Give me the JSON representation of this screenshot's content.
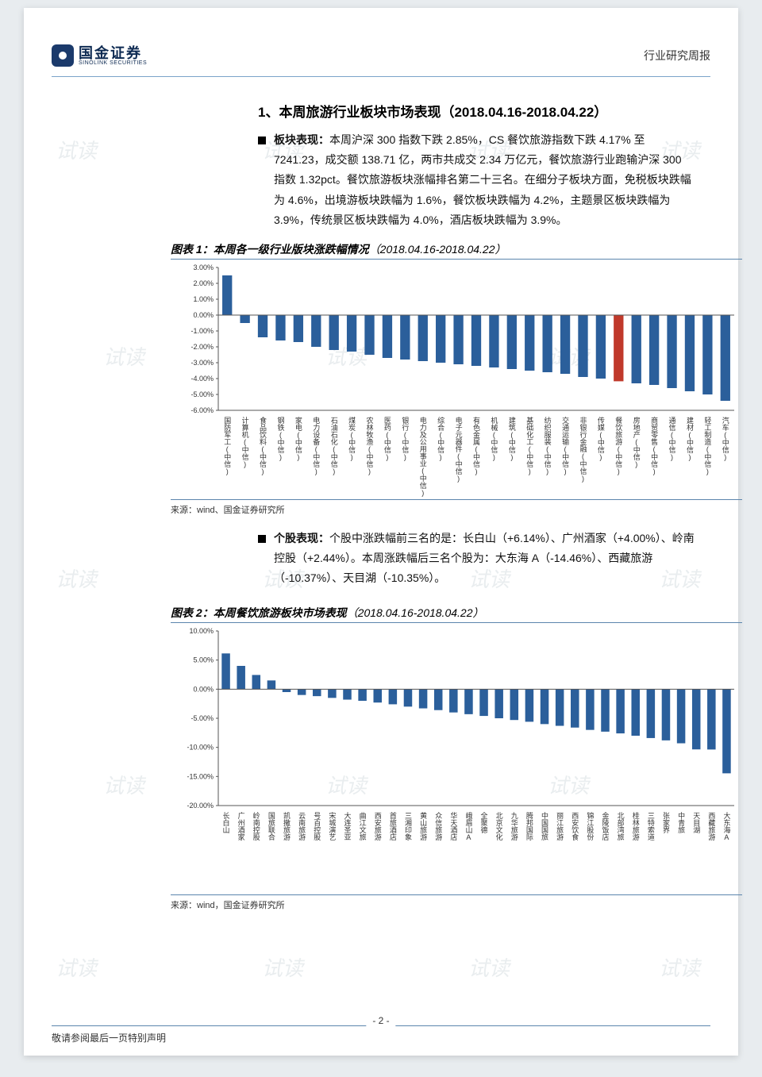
{
  "header": {
    "logo_cn": "国金证券",
    "logo_en": "SINOLINK SECURITIES",
    "doc_type": "行业研究周报"
  },
  "section1": {
    "title": "1、本周旅游行业板块市场表现（2018.04.16-2018.04.22）",
    "para_lead": "板块表现：",
    "para_body": "本周沪深 300 指数下跌 2.85%，CS 餐饮旅游指数下跌 4.17% 至 7241.23，成交额 138.71 亿，两市共成交 2.34 万亿元，餐饮旅游行业跑输沪深 300 指数 1.32pct。餐饮旅游板块涨幅排名第二十三名。在细分子板块方面，免税板块跌幅为 4.6%，出境游板块跌幅为 1.6%，餐饮板块跌幅为 4.2%，主题景区板块跌幅为 3.9%，传统景区板块跌幅为 4.0%，酒店板块跌幅为 3.9%。"
  },
  "fig1": {
    "title_prefix": "图表 1：本周各一级行业版块涨跌幅情况",
    "title_date": "（2018.04.16-2018.04.22）",
    "source": "来源：wind、国金证券研究所",
    "type": "bar",
    "ylabel_suffix": "%",
    "ylim": [
      -6,
      3
    ],
    "ytick_step": 1,
    "bar_color": "#2b5f9b",
    "highlight_color": "#c0392b",
    "highlight_index": 22,
    "axis_color": "#555555",
    "grid_color": "#cccccc",
    "categories": [
      "国防军工(中信)",
      "计算机(中信)",
      "食品饮料(中信)",
      "钢铁(中信)",
      "家电(中信)",
      "电力设备(中信)",
      "石油石化(中信)",
      "煤炭(中信)",
      "农林牧渔(中信)",
      "医药(中信)",
      "银行(中信)",
      "电力及公用事业(中信)",
      "综合(中信)",
      "电子元器件(中信)",
      "有色金属(中信)",
      "机械(中信)",
      "建筑(中信)",
      "基础化工(中信)",
      "纺织服装(中信)",
      "交通运输(中信)",
      "非银行金融(中信)",
      "传媒(中信)",
      "餐饮旅游(中信)",
      "房地产(中信)",
      "商贸零售(中信)",
      "通信(中信)",
      "建材(中信)",
      "轻工制造(中信)",
      "汽车(中信)"
    ],
    "values": [
      2.5,
      -0.5,
      -1.4,
      -1.6,
      -1.7,
      -2.0,
      -2.2,
      -2.3,
      -2.5,
      -2.7,
      -2.8,
      -2.9,
      -3.0,
      -3.1,
      -3.2,
      -3.3,
      -3.4,
      -3.5,
      -3.6,
      -3.7,
      -3.9,
      -4.0,
      -4.17,
      -4.3,
      -4.4,
      -4.6,
      -4.8,
      -5.0,
      -5.4
    ]
  },
  "section2": {
    "para_lead": "个股表现：",
    "para_body": "个股中涨跌幅前三名的是：长白山（+6.14%）、广州酒家（+4.00%）、岭南控股（+2.44%）。本周涨跌幅后三名个股为：大东海 A（-14.46%）、西藏旅游（-10.37%）、天目湖（-10.35%）。"
  },
  "fig2": {
    "title_prefix": "图表 2：本周餐饮旅游板块市场表现",
    "title_date": "（2018.04.16-2018.04.22）",
    "source": "来源：wind，国金证券研究所",
    "type": "bar",
    "ylim": [
      -20,
      10
    ],
    "ytick_step": 5,
    "bar_color": "#2b5f9b",
    "axis_color": "#555555",
    "categories": [
      "长白山",
      "广州酒家",
      "岭南控股",
      "国旅联合",
      "凯撒旅游",
      "云南旅游",
      "号百控股",
      "宋城演艺",
      "大连圣亚",
      "曲江文旅",
      "西安旅游",
      "首旅酒店",
      "三湘印象",
      "黄山旅游",
      "众信旅游",
      "华天酒店",
      "峨眉山A",
      "全聚德",
      "北京文化",
      "九华旅游",
      "腾邦国际",
      "中国国旅",
      "丽江旅游",
      "西安饮食",
      "锦江股份",
      "金陵饭店",
      "北部湾旅",
      "桂林旅游",
      "三特索道",
      "张家界",
      "中青旅",
      "天目湖",
      "西藏旅游",
      "大东海A"
    ],
    "values": [
      6.14,
      4.0,
      2.44,
      1.5,
      -0.5,
      -1.0,
      -1.2,
      -1.5,
      -1.8,
      -2.0,
      -2.3,
      -2.6,
      -3.0,
      -3.3,
      -3.6,
      -4.0,
      -4.3,
      -4.6,
      -5.0,
      -5.3,
      -5.6,
      -6.0,
      -6.3,
      -6.6,
      -7.0,
      -7.3,
      -7.6,
      -8.0,
      -8.4,
      -8.8,
      -9.3,
      -10.35,
      -10.37,
      -14.46
    ]
  },
  "footer": {
    "disclaimer": "敬请参阅最后一页特别声明",
    "page_num": "- 2 -"
  }
}
